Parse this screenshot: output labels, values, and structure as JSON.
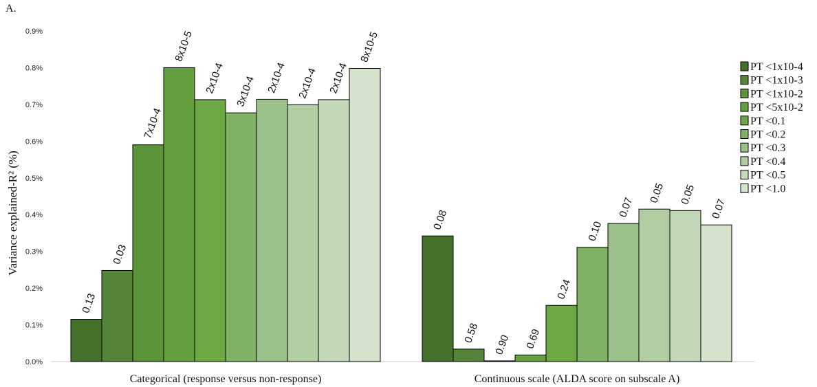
{
  "panel_label": "A.",
  "chart_data": {
    "type": "bar",
    "ylabel": "Variance explained-R² (%)",
    "ylim": [
      0,
      0.9
    ],
    "y_ticks": [
      "0.0%",
      "0.1%",
      "0.2%",
      "0.3%",
      "0.4%",
      "0.5%",
      "0.6%",
      "0.7%",
      "0.8%",
      "0.9%"
    ],
    "grid": false,
    "legend_position": "right",
    "categories": [
      "Categorical (response versus non-response)",
      "Continuous scale (ALDA score on subscale A)"
    ],
    "series": [
      {
        "name": "PT <1x10-4",
        "color": "#46712c",
        "values": [
          0.115,
          0.342
        ],
        "labels": [
          "0.13",
          "0.08"
        ]
      },
      {
        "name": "PT <1x10-3",
        "color": "#53843a",
        "values": [
          0.248,
          0.034
        ],
        "labels": [
          "0.03",
          "0.58"
        ]
      },
      {
        "name": "PT <1x10-2",
        "color": "#5b9438",
        "values": [
          0.59,
          0.002
        ],
        "labels": [
          "7x10-4",
          "0.90"
        ]
      },
      {
        "name": "PT <5x10-2",
        "color": "#639f3c",
        "values": [
          0.8,
          0.018
        ],
        "labels": [
          "8x10-5",
          "0.69"
        ]
      },
      {
        "name": "PT <0.1",
        "color": "#6ca843",
        "values": [
          0.713,
          0.153
        ],
        "labels": [
          "2x10-4",
          "0.24"
        ]
      },
      {
        "name": "PT <0.2",
        "color": "#80b265",
        "values": [
          0.677,
          0.311
        ],
        "labels": [
          "3x10-4",
          "0.10"
        ]
      },
      {
        "name": "PT <0.3",
        "color": "#9cc08a",
        "values": [
          0.714,
          0.376
        ],
        "labels": [
          "2x10-4",
          "0.07"
        ]
      },
      {
        "name": "PT <0.4",
        "color": "#b1cea2",
        "values": [
          0.699,
          0.415
        ],
        "labels": [
          "2x10-4",
          "0.05"
        ]
      },
      {
        "name": "PT <0.5",
        "color": "#c2d8b8",
        "values": [
          0.713,
          0.411
        ],
        "labels": [
          "2x10-4",
          "0.05"
        ]
      },
      {
        "name": "PT <1.0",
        "color": "#d5e3cc",
        "values": [
          0.798,
          0.372
        ],
        "labels": [
          "8x10-5",
          "0.07"
        ]
      }
    ]
  }
}
